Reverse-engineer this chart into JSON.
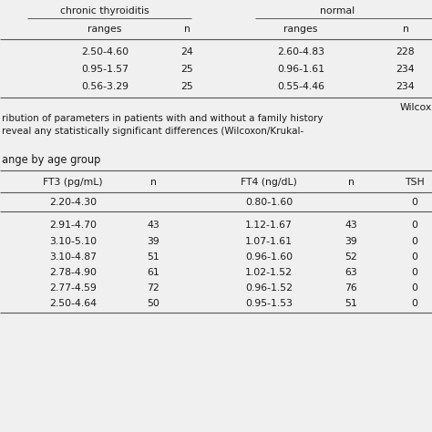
{
  "top_table": {
    "h1_left": "chronic thyroiditis",
    "h1_right": "normal",
    "header_row": [
      "ranges",
      "n",
      "ranges",
      "n"
    ],
    "rows": [
      [
        "2.50-4.60",
        "24",
        "2.60-4.83",
        "228"
      ],
      [
        "0.95-1.57",
        "25",
        "0.96-1.61",
        "234"
      ],
      [
        "0.56-3.29",
        "25",
        "0.55-4.46",
        "234"
      ]
    ],
    "footer": "Wilcox",
    "note1": "ribution of parameters in patients with and without a family history",
    "note2": "reveal any statistically significant differences (Wilcoxon/Krukal-"
  },
  "bottom_table": {
    "title": "ange by age group",
    "header_row": [
      "FT3 (pg/mL)",
      "n",
      "FT4 (ng/dL)",
      "n",
      "TSH"
    ],
    "ref_row": [
      "2.20-4.30",
      "",
      "0.80-1.60",
      "",
      "0"
    ],
    "rows": [
      [
        "2.91-4.70",
        "43",
        "1.12-1.67",
        "43",
        "0"
      ],
      [
        "3.10-5.10",
        "39",
        "1.07-1.61",
        "39",
        "0"
      ],
      [
        "3.10-4.87",
        "51",
        "0.96-1.60",
        "52",
        "0"
      ],
      [
        "2.78-4.90",
        "61",
        "1.02-1.52",
        "63",
        "0"
      ],
      [
        "2.77-4.59",
        "72",
        "0.96-1.52",
        "76",
        "0"
      ],
      [
        "2.50-4.64",
        "50",
        "0.95-1.53",
        "51",
        "0"
      ]
    ]
  },
  "bg_color": "#f0f0f0",
  "text_color": "#1a1a1a",
  "line_color": "#555555",
  "fs": 7.8
}
